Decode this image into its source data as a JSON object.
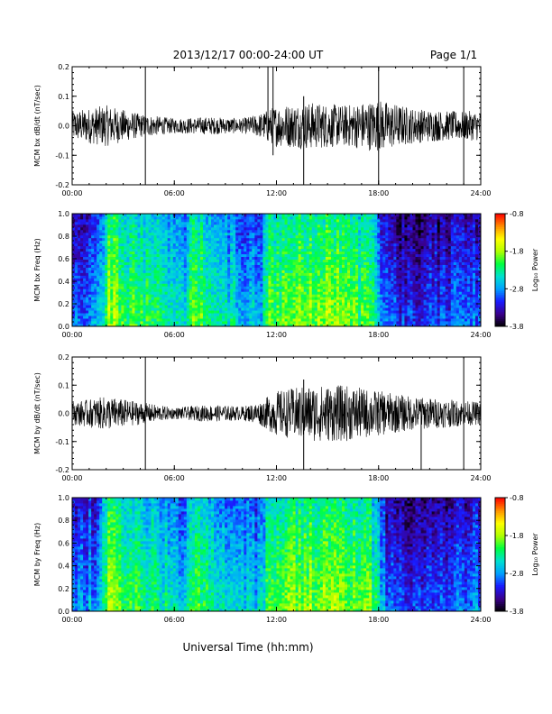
{
  "header": {
    "title": "2013/12/17  00:00-24:00 UT",
    "page": "Page 1/1"
  },
  "footer": {
    "xlabel": "Universal Time (hh:mm)"
  },
  "x_ticks": [
    "00:00",
    "06:00",
    "12:00",
    "18:00",
    "24:00"
  ],
  "colorbar": {
    "label": "Log₁₀ Power",
    "ticks": [
      "-0.8",
      "-1.8",
      "-2.8",
      "-3.8"
    ],
    "range": [
      -3.8,
      -0.8
    ],
    "colors": [
      "#000000",
      "#3a008a",
      "#1a1aff",
      "#00a0ff",
      "#00e0d0",
      "#00ff40",
      "#b0ff00",
      "#ffff00",
      "#ff9000",
      "#ff0000"
    ]
  },
  "chart_data": [
    {
      "type": "line",
      "ylabel": "MCM bx dB/dt (nT/sec)",
      "xlim": [
        0,
        24
      ],
      "ylim": [
        -0.2,
        0.2
      ],
      "yticks": [
        "0.2",
        "0.1",
        "0.0",
        "-0.1",
        "-0.2"
      ],
      "amplitude_envelope": [
        {
          "t": 0,
          "a": 0.05
        },
        {
          "t": 2,
          "a": 0.07
        },
        {
          "t": 4,
          "a": 0.04
        },
        {
          "t": 6,
          "a": 0.025
        },
        {
          "t": 8,
          "a": 0.03
        },
        {
          "t": 10,
          "a": 0.025
        },
        {
          "t": 11,
          "a": 0.04
        },
        {
          "t": 12,
          "a": 0.07
        },
        {
          "t": 14,
          "a": 0.08
        },
        {
          "t": 16,
          "a": 0.07
        },
        {
          "t": 18,
          "a": 0.09
        },
        {
          "t": 20,
          "a": 0.06
        },
        {
          "t": 22,
          "a": 0.05
        },
        {
          "t": 24,
          "a": 0.05
        }
      ],
      "spikes": [
        {
          "t": 4.3,
          "y0": -0.2,
          "y1": 0.2
        },
        {
          "t": 11.5,
          "y0": -0.05,
          "y1": 0.2
        },
        {
          "t": 11.8,
          "y0": -0.1,
          "y1": 0.2
        },
        {
          "t": 13.6,
          "y0": -0.2,
          "y1": 0.1
        },
        {
          "t": 18.0,
          "y0": -0.2,
          "y1": 0.2
        },
        {
          "t": 23.0,
          "y0": -0.2,
          "y1": 0.2
        }
      ]
    },
    {
      "type": "heatmap",
      "ylabel": "MCM bx Freq (Hz)",
      "xlim": [
        0,
        24
      ],
      "ylim": [
        0.0,
        1.0
      ],
      "yticks": [
        "1.0",
        "0.8",
        "0.6",
        "0.4",
        "0.2",
        "0.0"
      ],
      "log_power_profile": [
        {
          "t": 0,
          "p": -2.9
        },
        {
          "t": 1.5,
          "p": -2.8
        },
        {
          "t": 2.2,
          "p": -1.7
        },
        {
          "t": 3,
          "p": -2.0
        },
        {
          "t": 4.5,
          "p": -2.2
        },
        {
          "t": 6.5,
          "p": -2.5
        },
        {
          "t": 7.2,
          "p": -2.0
        },
        {
          "t": 9,
          "p": -2.4
        },
        {
          "t": 11,
          "p": -2.7
        },
        {
          "t": 11.6,
          "p": -2.0
        },
        {
          "t": 13,
          "p": -1.9
        },
        {
          "t": 15,
          "p": -1.8
        },
        {
          "t": 17.5,
          "p": -2.1
        },
        {
          "t": 18.5,
          "p": -3.0
        },
        {
          "t": 20,
          "p": -3.1
        },
        {
          "t": 22,
          "p": -3.0
        },
        {
          "t": 24,
          "p": -2.9
        }
      ]
    },
    {
      "type": "line",
      "ylabel": "MCM by dB/dt (nT/sec)",
      "xlim": [
        0,
        24
      ],
      "ylim": [
        -0.2,
        0.2
      ],
      "yticks": [
        "0.2",
        "0.1",
        "0.0",
        "-0.1",
        "-0.2"
      ],
      "amplitude_envelope": [
        {
          "t": 0,
          "a": 0.04
        },
        {
          "t": 2,
          "a": 0.06
        },
        {
          "t": 4,
          "a": 0.04
        },
        {
          "t": 6,
          "a": 0.02
        },
        {
          "t": 8,
          "a": 0.03
        },
        {
          "t": 10,
          "a": 0.025
        },
        {
          "t": 11,
          "a": 0.04
        },
        {
          "t": 12,
          "a": 0.08
        },
        {
          "t": 14,
          "a": 0.1
        },
        {
          "t": 16,
          "a": 0.1
        },
        {
          "t": 18,
          "a": 0.08
        },
        {
          "t": 20,
          "a": 0.06
        },
        {
          "t": 22,
          "a": 0.05
        },
        {
          "t": 24,
          "a": 0.04
        }
      ],
      "spikes": [
        {
          "t": 4.3,
          "y0": -0.2,
          "y1": 0.2
        },
        {
          "t": 13.6,
          "y0": -0.2,
          "y1": 0.12
        },
        {
          "t": 20.5,
          "y0": -0.2,
          "y1": 0.05
        },
        {
          "t": 23.0,
          "y0": -0.2,
          "y1": 0.2
        }
      ]
    },
    {
      "type": "heatmap",
      "ylabel": "MCM by Freq (Hz)",
      "xlim": [
        0,
        24
      ],
      "ylim": [
        0.0,
        1.0
      ],
      "yticks": [
        "1.0",
        "0.8",
        "0.6",
        "0.4",
        "0.2",
        "0.0"
      ],
      "log_power_profile": [
        {
          "t": 0,
          "p": -2.9
        },
        {
          "t": 1.5,
          "p": -2.7
        },
        {
          "t": 2.2,
          "p": -1.7
        },
        {
          "t": 3,
          "p": -2.0
        },
        {
          "t": 4.5,
          "p": -2.2
        },
        {
          "t": 6.5,
          "p": -2.5
        },
        {
          "t": 7.2,
          "p": -2.0
        },
        {
          "t": 9,
          "p": -2.4
        },
        {
          "t": 11,
          "p": -2.6
        },
        {
          "t": 11.6,
          "p": -2.0
        },
        {
          "t": 13,
          "p": -1.9
        },
        {
          "t": 15,
          "p": -1.8
        },
        {
          "t": 17.5,
          "p": -2.0
        },
        {
          "t": 18.5,
          "p": -2.9
        },
        {
          "t": 20,
          "p": -3.1
        },
        {
          "t": 22,
          "p": -3.0
        },
        {
          "t": 24,
          "p": -2.8
        }
      ]
    }
  ]
}
